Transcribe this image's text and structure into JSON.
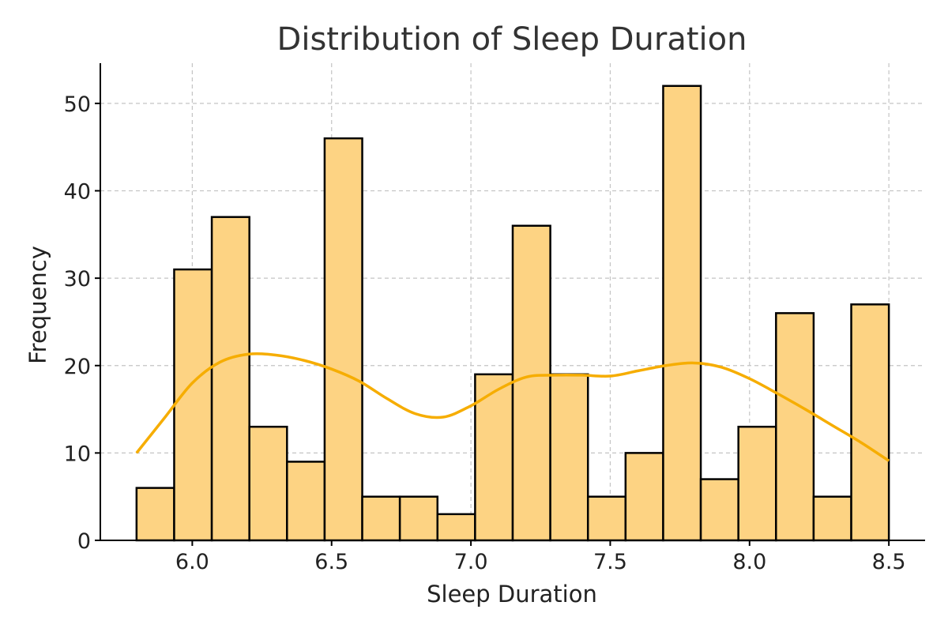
{
  "chart_data": {
    "type": "bar",
    "subtype": "histogram-with-kde",
    "title": "Distribution of Sleep Duration",
    "xlabel": "Sleep Duration",
    "ylabel": "Frequency",
    "xlim": [
      5.67,
      8.63
    ],
    "ylim": [
      0,
      54.6
    ],
    "xticks": [
      "6.0",
      "6.5",
      "7.0",
      "7.5",
      "8.0",
      "8.5"
    ],
    "yticks": [
      "0",
      "10",
      "20",
      "30",
      "40",
      "50"
    ],
    "grid": true,
    "bins": {
      "start": 5.8,
      "end": 8.5,
      "counts": [
        6,
        31,
        37,
        13,
        9,
        46,
        5,
        5,
        3,
        19,
        36,
        19,
        5,
        10,
        52,
        7,
        13,
        26,
        5,
        27
      ]
    },
    "kde": {
      "x": [
        5.8,
        5.9,
        6.0,
        6.1,
        6.2,
        6.3,
        6.4,
        6.5,
        6.6,
        6.7,
        6.8,
        6.9,
        7.0,
        7.1,
        7.2,
        7.3,
        7.4,
        7.5,
        7.6,
        7.7,
        7.8,
        7.9,
        8.0,
        8.1,
        8.2,
        8.3,
        8.4,
        8.5
      ],
      "y": [
        10,
        14,
        18,
        20.4,
        21.3,
        21.2,
        20.6,
        19.6,
        18.2,
        16.2,
        14.5,
        14.1,
        15.4,
        17.3,
        18.7,
        18.9,
        18.9,
        18.8,
        19.4,
        20.0,
        20.3,
        19.8,
        18.5,
        16.8,
        15.0,
        13.1,
        11.2,
        9.1
      ]
    },
    "colors": {
      "bar_fill": "#fdd383",
      "bar_edge": "#000000",
      "kde_line": "#f6ad00"
    }
  }
}
